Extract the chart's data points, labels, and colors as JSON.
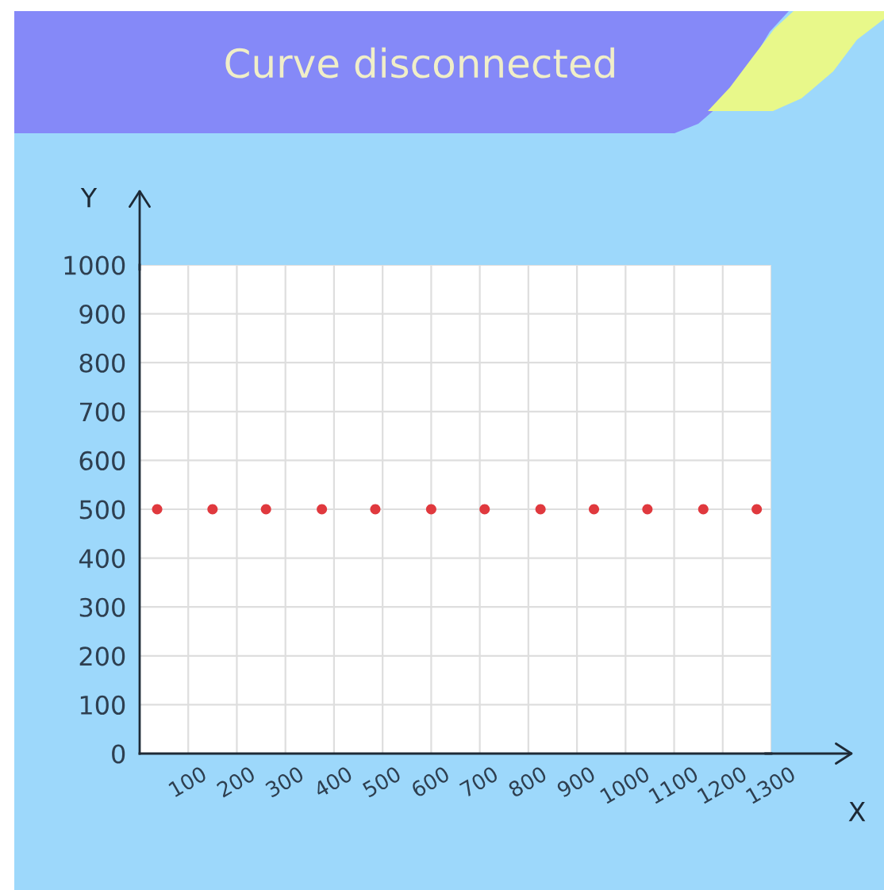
{
  "chart_data": {
    "type": "scatter",
    "title": "Curve disconnected",
    "xlabel": "X",
    "ylabel": "Y",
    "x": [
      36,
      150,
      260,
      375,
      485,
      600,
      710,
      825,
      935,
      1045,
      1160,
      1270
    ],
    "series": [
      {
        "color": "#e0393e",
        "values": [
          500,
          500,
          500,
          500,
          500,
          500,
          500,
          500,
          500,
          500,
          500,
          500
        ]
      }
    ],
    "xlim": [
      0,
      1300
    ],
    "ylim": [
      0,
      1000
    ],
    "xticks": [
      100,
      200,
      300,
      400,
      500,
      600,
      700,
      800,
      900,
      1000,
      1100,
      1200,
      1300
    ],
    "yticks": [
      0,
      100,
      200,
      300,
      400,
      500,
      600,
      700,
      800,
      900,
      1000
    ],
    "grid": true,
    "marker": "circle"
  }
}
